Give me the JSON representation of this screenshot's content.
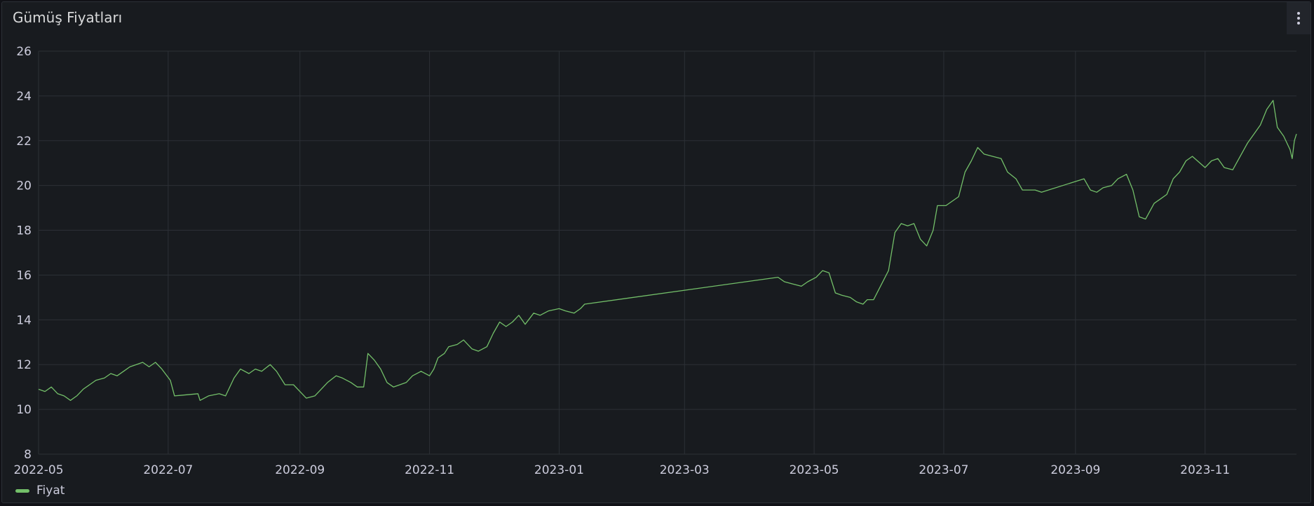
{
  "panel": {
    "title": "Gümüş Fiyatları",
    "menu_icon": "kebab-menu-icon"
  },
  "colors": {
    "series": "#73bf69",
    "grid": "#2c3036",
    "text": "#ccccdc"
  },
  "chart_data": {
    "type": "line",
    "title": "Gümüş Fiyatları",
    "xlabel": "",
    "ylabel": "",
    "ylim": [
      8,
      26
    ],
    "yticks": [
      "8",
      "10",
      "12",
      "14",
      "16",
      "18",
      "20",
      "22",
      "24",
      "26"
    ],
    "xticks": [
      "2022-05",
      "2022-07",
      "2022-09",
      "2022-11",
      "2023-01",
      "2023-03",
      "2023-05",
      "2023-07",
      "2023-09",
      "2023-11"
    ],
    "xlim": [
      "2022-05-01",
      "2023-12-14"
    ],
    "grid": true,
    "legend_position": "bottom-left",
    "series": [
      {
        "name": "Fiyat",
        "points": [
          [
            "2022-05-01",
            10.9
          ],
          [
            "2022-05-04",
            10.8
          ],
          [
            "2022-05-07",
            11.0
          ],
          [
            "2022-05-10",
            10.7
          ],
          [
            "2022-05-13",
            10.6
          ],
          [
            "2022-05-16",
            10.4
          ],
          [
            "2022-05-19",
            10.6
          ],
          [
            "2022-05-22",
            10.9
          ],
          [
            "2022-05-25",
            11.1
          ],
          [
            "2022-05-28",
            11.3
          ],
          [
            "2022-06-01",
            11.4
          ],
          [
            "2022-06-04",
            11.6
          ],
          [
            "2022-06-07",
            11.5
          ],
          [
            "2022-06-10",
            11.7
          ],
          [
            "2022-06-13",
            11.9
          ],
          [
            "2022-06-16",
            12.0
          ],
          [
            "2022-06-19",
            12.1
          ],
          [
            "2022-06-22",
            11.9
          ],
          [
            "2022-06-25",
            12.1
          ],
          [
            "2022-06-28",
            11.8
          ],
          [
            "2022-07-02",
            11.3
          ],
          [
            "2022-07-04",
            10.6
          ],
          [
            "2022-07-15",
            10.7
          ],
          [
            "2022-07-16",
            10.4
          ],
          [
            "2022-07-20",
            10.6
          ],
          [
            "2022-07-25",
            10.7
          ],
          [
            "2022-07-28",
            10.6
          ],
          [
            "2022-08-01",
            11.4
          ],
          [
            "2022-08-04",
            11.8
          ],
          [
            "2022-08-08",
            11.6
          ],
          [
            "2022-08-11",
            11.8
          ],
          [
            "2022-08-14",
            11.7
          ],
          [
            "2022-08-18",
            12.0
          ],
          [
            "2022-08-21",
            11.7
          ],
          [
            "2022-08-25",
            11.1
          ],
          [
            "2022-08-29",
            11.1
          ],
          [
            "2022-09-01",
            10.8
          ],
          [
            "2022-09-04",
            10.5
          ],
          [
            "2022-09-08",
            10.6
          ],
          [
            "2022-09-11",
            10.9
          ],
          [
            "2022-09-14",
            11.2
          ],
          [
            "2022-09-18",
            11.5
          ],
          [
            "2022-09-21",
            11.4
          ],
          [
            "2022-09-25",
            11.2
          ],
          [
            "2022-09-28",
            11.0
          ],
          [
            "2022-10-01",
            11.0
          ],
          [
            "2022-10-03",
            12.5
          ],
          [
            "2022-10-06",
            12.2
          ],
          [
            "2022-10-09",
            11.8
          ],
          [
            "2022-10-12",
            11.2
          ],
          [
            "2022-10-15",
            11.0
          ],
          [
            "2022-10-18",
            11.1
          ],
          [
            "2022-10-21",
            11.2
          ],
          [
            "2022-10-24",
            11.5
          ],
          [
            "2022-10-28",
            11.7
          ],
          [
            "2022-11-01",
            11.5
          ],
          [
            "2022-11-03",
            11.8
          ],
          [
            "2022-11-05",
            12.3
          ],
          [
            "2022-11-08",
            12.5
          ],
          [
            "2022-11-10",
            12.8
          ],
          [
            "2022-11-14",
            12.9
          ],
          [
            "2022-11-17",
            13.1
          ],
          [
            "2022-11-21",
            12.7
          ],
          [
            "2022-11-24",
            12.6
          ],
          [
            "2022-11-28",
            12.8
          ],
          [
            "2022-12-01",
            13.4
          ],
          [
            "2022-12-04",
            13.9
          ],
          [
            "2022-12-07",
            13.7
          ],
          [
            "2022-12-10",
            13.9
          ],
          [
            "2022-12-13",
            14.2
          ],
          [
            "2022-12-16",
            13.8
          ],
          [
            "2022-12-20",
            14.3
          ],
          [
            "2022-12-23",
            14.2
          ],
          [
            "2022-12-27",
            14.4
          ],
          [
            "2023-01-01",
            14.5
          ],
          [
            "2023-01-04",
            14.4
          ],
          [
            "2023-01-08",
            14.3
          ],
          [
            "2023-01-11",
            14.5
          ],
          [
            "2023-01-13",
            14.7
          ],
          [
            "2023-04-14",
            15.9
          ],
          [
            "2023-04-17",
            15.7
          ],
          [
            "2023-04-21",
            15.6
          ],
          [
            "2023-04-25",
            15.5
          ],
          [
            "2023-04-28",
            15.7
          ],
          [
            "2023-05-02",
            15.9
          ],
          [
            "2023-05-05",
            16.2
          ],
          [
            "2023-05-08",
            16.1
          ],
          [
            "2023-05-11",
            15.2
          ],
          [
            "2023-05-14",
            15.1
          ],
          [
            "2023-05-18",
            15.0
          ],
          [
            "2023-05-21",
            14.8
          ],
          [
            "2023-05-24",
            14.7
          ],
          [
            "2023-05-26",
            14.9
          ],
          [
            "2023-05-29",
            14.9
          ],
          [
            "2023-06-05",
            16.2
          ],
          [
            "2023-06-08",
            17.9
          ],
          [
            "2023-06-11",
            18.3
          ],
          [
            "2023-06-14",
            18.2
          ],
          [
            "2023-06-17",
            18.3
          ],
          [
            "2023-06-20",
            17.6
          ],
          [
            "2023-06-23",
            17.3
          ],
          [
            "2023-06-26",
            18.0
          ],
          [
            "2023-06-28",
            19.1
          ],
          [
            "2023-07-02",
            19.1
          ],
          [
            "2023-07-05",
            19.3
          ],
          [
            "2023-07-08",
            19.5
          ],
          [
            "2023-07-11",
            20.6
          ],
          [
            "2023-07-14",
            21.1
          ],
          [
            "2023-07-17",
            21.7
          ],
          [
            "2023-07-20",
            21.4
          ],
          [
            "2023-07-24",
            21.3
          ],
          [
            "2023-07-28",
            21.2
          ],
          [
            "2023-07-31",
            20.6
          ],
          [
            "2023-08-04",
            20.3
          ],
          [
            "2023-08-07",
            19.8
          ],
          [
            "2023-08-10",
            19.8
          ],
          [
            "2023-08-13",
            19.8
          ],
          [
            "2023-08-16",
            19.7
          ],
          [
            "2023-09-05",
            20.3
          ],
          [
            "2023-09-08",
            19.8
          ],
          [
            "2023-09-11",
            19.7
          ],
          [
            "2023-09-14",
            19.9
          ],
          [
            "2023-09-18",
            20.0
          ],
          [
            "2023-09-21",
            20.3
          ],
          [
            "2023-09-25",
            20.5
          ],
          [
            "2023-09-28",
            19.8
          ],
          [
            "2023-10-01",
            18.6
          ],
          [
            "2023-10-04",
            18.5
          ],
          [
            "2023-10-08",
            19.2
          ],
          [
            "2023-10-11",
            19.4
          ],
          [
            "2023-10-14",
            19.6
          ],
          [
            "2023-10-17",
            20.3
          ],
          [
            "2023-10-20",
            20.6
          ],
          [
            "2023-10-23",
            21.1
          ],
          [
            "2023-10-26",
            21.3
          ],
          [
            "2023-11-01",
            20.8
          ],
          [
            "2023-11-04",
            21.1
          ],
          [
            "2023-11-07",
            21.2
          ],
          [
            "2023-11-10",
            20.8
          ],
          [
            "2023-11-14",
            20.7
          ],
          [
            "2023-11-21",
            21.9
          ],
          [
            "2023-11-24",
            22.3
          ],
          [
            "2023-11-27",
            22.7
          ],
          [
            "2023-11-30",
            23.4
          ],
          [
            "2023-12-03",
            23.8
          ],
          [
            "2023-12-05",
            22.6
          ],
          [
            "2023-12-08",
            22.2
          ],
          [
            "2023-12-11",
            21.6
          ],
          [
            "2023-12-12",
            21.2
          ],
          [
            "2023-12-13",
            22.0
          ],
          [
            "2023-12-14",
            22.3
          ]
        ]
      }
    ]
  }
}
